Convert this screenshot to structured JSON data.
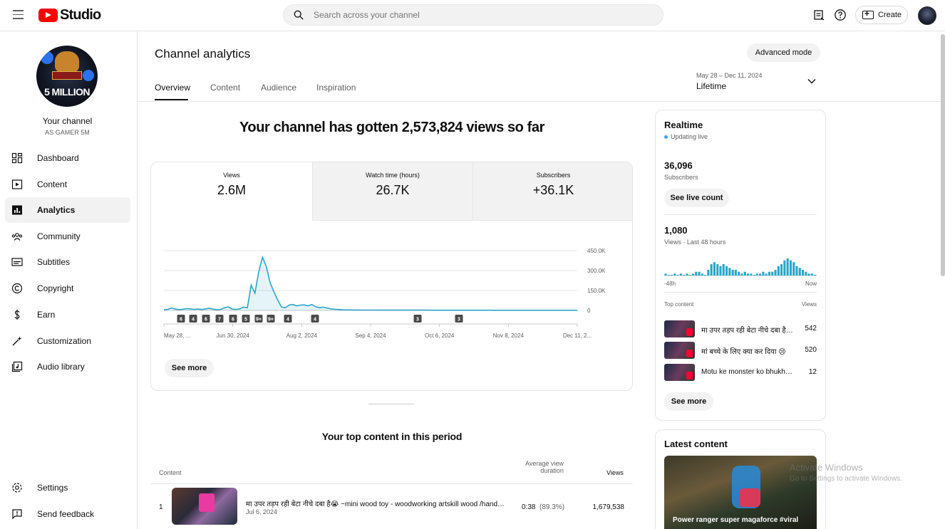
{
  "header": {
    "logo_text": "Studio",
    "search_placeholder": "Search across your channel",
    "create_label": "Create"
  },
  "sidebar": {
    "your_channel": "Your channel",
    "channel_name": "AS GAMER 5M",
    "avatar_text": "5 MILLION",
    "items": [
      {
        "label": "Dashboard",
        "icon": "dashboard-icon"
      },
      {
        "label": "Content",
        "icon": "content-icon"
      },
      {
        "label": "Analytics",
        "icon": "analytics-icon"
      },
      {
        "label": "Community",
        "icon": "community-icon"
      },
      {
        "label": "Subtitles",
        "icon": "subtitles-icon"
      },
      {
        "label": "Copyright",
        "icon": "copyright-icon"
      },
      {
        "label": "Earn",
        "icon": "earn-icon"
      },
      {
        "label": "Customization",
        "icon": "customization-icon"
      },
      {
        "label": "Audio library",
        "icon": "audio-library-icon"
      }
    ],
    "bottom": [
      {
        "label": "Settings",
        "icon": "settings-icon"
      },
      {
        "label": "Send feedback",
        "icon": "feedback-icon"
      }
    ]
  },
  "main": {
    "title": "Channel analytics",
    "advanced_mode": "Advanced mode",
    "tabs": [
      "Overview",
      "Content",
      "Audience",
      "Inspiration"
    ],
    "active_tab": "Overview",
    "date_range": "May 28 – Dec 11, 2024",
    "date_label": "Lifetime",
    "headline": "Your channel has gotten 2,573,824 views so far",
    "metrics": [
      {
        "label": "Views",
        "value": "2.6M"
      },
      {
        "label": "Watch time (hours)",
        "value": "26.7K"
      },
      {
        "label": "Subscribers",
        "value": "+36.1K"
      }
    ],
    "see_more": "See more",
    "top_content_title": "Your top content in this period",
    "table": {
      "col_content": "Content",
      "col_avg_1": "Average view",
      "col_avg_2": "duration",
      "col_views": "Views",
      "rows": [
        {
          "rank": "1",
          "title": "मा उपर तड़प रही बेटा नीचे दबा है😭 ~mini wood toy - woodworking artskill wood /hand crafts #shorts",
          "date": "Jul 6, 2024",
          "duration": "0:38",
          "pct": "(89.3%)",
          "views": "1,679,538"
        }
      ]
    }
  },
  "chart_data": {
    "type": "area",
    "title": "",
    "xlabel": "",
    "ylabel": "",
    "y_ticks": [
      "450.0K",
      "300.0K",
      "150.0K",
      "0"
    ],
    "ylim": [
      0,
      450000
    ],
    "x_tick_labels": [
      "May 28, ...",
      "Jun 30, 2024",
      "Aug 2, 2024",
      "Sep 4, 2024",
      "Oct 6, 2024",
      "Nov 8, 2024",
      "Dec 11, 2..."
    ],
    "grid": true,
    "color": "#2aa6c8",
    "series": [
      {
        "values": [
          5000,
          8000,
          18000,
          10000,
          6000,
          9000,
          14000,
          12000,
          8000,
          10000,
          7000,
          12000,
          16000,
          9000,
          6000,
          8000,
          20000,
          26000,
          10000,
          8000,
          12000,
          25000,
          20000,
          190000,
          130000,
          290000,
          400000,
          330000,
          210000,
          140000,
          80000,
          25000,
          20000,
          40000,
          45000,
          35000,
          40000,
          42000,
          35000,
          44000,
          28000,
          20000,
          25000,
          18000,
          12000,
          9000,
          7000,
          5000,
          4000,
          3500,
          3000,
          3000,
          2800,
          2600,
          2500,
          2500,
          2400,
          2400,
          2300,
          2300,
          2200,
          2200,
          2100,
          2100,
          2000,
          2000,
          2000,
          1900,
          1900,
          1900,
          1800,
          1800,
          1800,
          1700,
          1700,
          1700,
          1600,
          1600,
          1600,
          1500,
          1500,
          1500,
          1500,
          1400,
          1400,
          1400,
          1400,
          1300,
          1300,
          1300,
          1300,
          1300,
          1200,
          1200,
          1200,
          1200,
          1200,
          1100,
          1100,
          1100,
          1100,
          1100,
          1000,
          1000,
          1000,
          1000,
          1000,
          1000,
          1000,
          1000
        ]
      }
    ],
    "markers": [
      "6",
      "4",
      "6",
      "7",
      "6",
      "5",
      "9+",
      "9+",
      "4",
      "4",
      "3",
      "3"
    ]
  },
  "realtime": {
    "title": "Realtime",
    "status": "Updating live",
    "subscribers": "36,096",
    "subscribers_label": "Subscribers",
    "see_live_count": "See live count",
    "views": "1,080",
    "views_label": "Views · Last 48 hours",
    "axis_start": "-48h",
    "axis_end": "Now",
    "spark_values": [
      1,
      0,
      0,
      1,
      0,
      1,
      0,
      1,
      0,
      1,
      2,
      2,
      1,
      0,
      3,
      6,
      7,
      6,
      5,
      6,
      5,
      4,
      3,
      3,
      2,
      1,
      2,
      1,
      1,
      0,
      1,
      1,
      2,
      1,
      2,
      2,
      3,
      5,
      6,
      8,
      9,
      8,
      7,
      5,
      4,
      3,
      2,
      1,
      1,
      0
    ],
    "top_content_label": "Top content",
    "views_col": "Views",
    "items": [
      {
        "title": "मा उपर तड़प रही बेटा नीचे दबा है😭",
        "views": "542"
      },
      {
        "title": "मां बच्चे के लिए क्या कर दिया 😢",
        "views": "520"
      },
      {
        "title": "Motu ke monster ko bhukh lagi",
        "views": "12"
      }
    ],
    "see_more": "See more"
  },
  "latest": {
    "title": "Latest content",
    "video_title": "Power ranger super magaforce #viral"
  },
  "watermark": {
    "line1": "Activate Windows",
    "line2": "Go to Settings to activate Windows."
  }
}
